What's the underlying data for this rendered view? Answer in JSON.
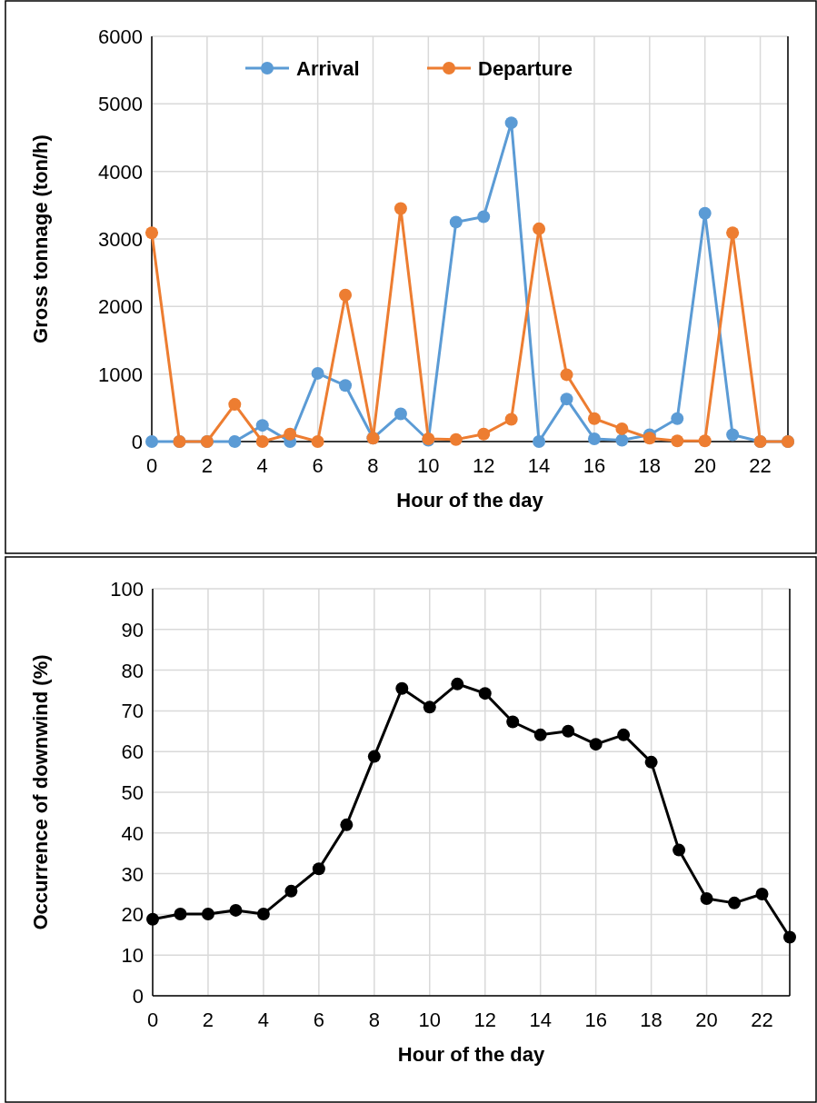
{
  "chart_data": [
    {
      "type": "line",
      "xlabel": "Hour of the day",
      "ylabel": "Gross tonnage (ton/h)",
      "x": [
        0,
        1,
        2,
        3,
        4,
        5,
        6,
        7,
        8,
        9,
        10,
        11,
        12,
        13,
        14,
        15,
        16,
        17,
        18,
        19,
        20,
        21,
        22,
        23
      ],
      "series": [
        {
          "name": "Arrival",
          "color": "#5b9bd5",
          "values": [
            0,
            0,
            0,
            0,
            240,
            0,
            1010,
            830,
            50,
            410,
            20,
            3250,
            3330,
            4720,
            0,
            630,
            40,
            20,
            100,
            340,
            3380,
            100,
            0,
            0
          ]
        },
        {
          "name": "Departure",
          "color": "#ed7d31",
          "values": [
            3090,
            0,
            0,
            550,
            0,
            110,
            0,
            2170,
            50,
            3450,
            40,
            30,
            110,
            330,
            3150,
            990,
            340,
            190,
            50,
            10,
            10,
            3090,
            0,
            0
          ]
        }
      ],
      "xlim": [
        0,
        23
      ],
      "xticks": [
        0,
        2,
        4,
        6,
        8,
        10,
        12,
        14,
        16,
        18,
        20,
        22
      ],
      "ylim": [
        0,
        6000
      ],
      "yticks": [
        0,
        1000,
        2000,
        3000,
        4000,
        5000,
        6000
      ],
      "grid": true,
      "legend": "top",
      "marker": "circle",
      "line_style": "solid"
    },
    {
      "type": "line",
      "xlabel": "Hour of the day",
      "ylabel": "Occurrence of downwind (%)",
      "x": [
        0,
        1,
        2,
        3,
        4,
        5,
        6,
        7,
        8,
        9,
        10,
        11,
        12,
        13,
        14,
        15,
        16,
        17,
        18,
        19,
        20,
        21,
        22,
        23
      ],
      "series": [
        {
          "color": "#000000",
          "values": [
            18.8,
            20.1,
            20.1,
            21.0,
            20.1,
            25.7,
            31.2,
            42.0,
            58.8,
            75.5,
            70.9,
            76.6,
            74.3,
            67.3,
            64.1,
            65.0,
            61.8,
            64.1,
            57.4,
            35.8,
            23.9,
            22.8,
            25.0,
            14.4
          ]
        }
      ],
      "xlim": [
        0,
        23
      ],
      "xticks": [
        0,
        2,
        4,
        6,
        8,
        10,
        12,
        14,
        16,
        18,
        20,
        22
      ],
      "ylim": [
        0,
        100
      ],
      "yticks": [
        0,
        10,
        20,
        30,
        40,
        50,
        60,
        70,
        80,
        90,
        100
      ],
      "grid": true,
      "legend": false,
      "marker": "circle",
      "line_style": "solid"
    }
  ]
}
